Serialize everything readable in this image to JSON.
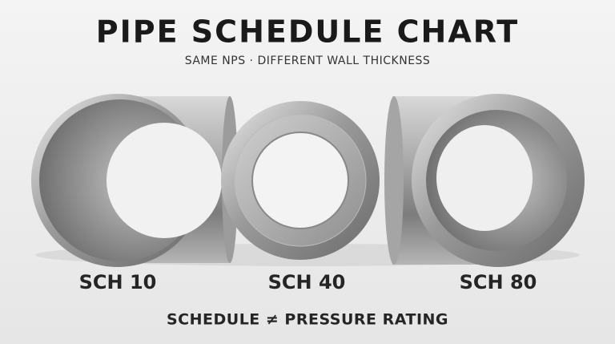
{
  "header": {
    "title": "PIPE SCHEDULE CHART",
    "subtitle": "SAME NPS · DIFFERENT WALL THICKNESS"
  },
  "pipes": [
    {
      "label": "SCH 10"
    },
    {
      "label": "SCH 40"
    },
    {
      "label": "SCH 80"
    }
  ],
  "footer": "SCHEDULE ≠ PRESSURE RATING"
}
